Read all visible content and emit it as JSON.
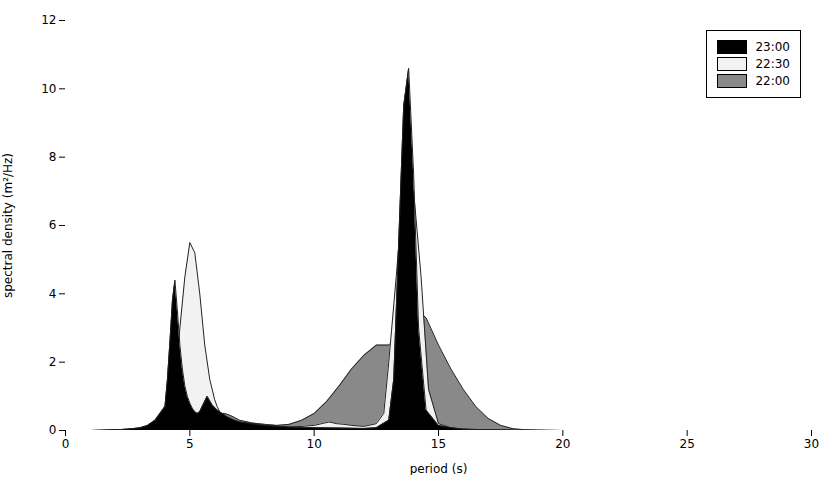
{
  "chart_data": {
    "type": "area",
    "xlabel": "period (s)",
    "ylabel": "spectral density (m²/Hz)",
    "xlim": [
      0,
      30
    ],
    "ylim": [
      0,
      12
    ],
    "xticks": [
      0,
      5,
      10,
      15,
      20,
      25,
      30
    ],
    "yticks": [
      0,
      2,
      4,
      6,
      8,
      10,
      12
    ],
    "grid": false,
    "legend": "upper right",
    "series": [
      {
        "name": "23:00",
        "color": "#000000",
        "x": [
          0.0,
          0.5,
          1.0,
          1.5,
          2.0,
          2.5,
          3.0,
          3.3,
          3.6,
          3.8,
          4.0,
          4.1,
          4.2,
          4.3,
          4.4,
          4.5,
          4.6,
          4.7,
          4.8,
          4.9,
          5.0,
          5.1,
          5.2,
          5.3,
          5.4,
          5.5,
          5.7,
          5.9,
          6.1,
          6.3,
          6.5,
          6.8,
          7.0,
          7.5,
          8.0,
          9.0,
          10.0,
          11.0,
          12.0,
          12.5,
          13.0,
          13.2,
          13.4,
          13.6,
          13.8,
          14.0,
          14.2,
          14.5,
          15.0,
          15.5,
          16.0,
          17.0,
          18.0,
          20.0,
          25.0,
          30.0
        ],
        "values": [
          0.0,
          0.0,
          0.0,
          0.01,
          0.02,
          0.04,
          0.08,
          0.15,
          0.3,
          0.5,
          0.7,
          1.5,
          2.6,
          3.8,
          4.4,
          3.5,
          2.5,
          1.8,
          1.3,
          1.0,
          0.8,
          0.65,
          0.55,
          0.5,
          0.55,
          0.7,
          1.0,
          0.75,
          0.6,
          0.5,
          0.4,
          0.3,
          0.25,
          0.2,
          0.15,
          0.1,
          0.08,
          0.07,
          0.06,
          0.08,
          0.3,
          1.5,
          5.5,
          9.5,
          10.6,
          7.5,
          3.0,
          0.6,
          0.15,
          0.08,
          0.04,
          0.02,
          0.01,
          0.0,
          0.0,
          0.0
        ]
      },
      {
        "name": "22:30",
        "color": "#f2f2f2",
        "x": [
          0.0,
          0.5,
          1.0,
          1.5,
          2.0,
          2.5,
          3.0,
          3.3,
          3.6,
          3.8,
          4.0,
          4.2,
          4.4,
          4.6,
          4.8,
          5.0,
          5.2,
          5.4,
          5.6,
          5.8,
          6.0,
          6.1,
          6.2,
          6.4,
          6.6,
          6.8,
          7.0,
          7.2,
          7.5,
          8.0,
          8.5,
          9.0,
          9.5,
          10.0,
          10.3,
          10.6,
          10.9,
          11.2,
          11.5,
          12.0,
          12.5,
          12.8,
          13.0,
          13.3,
          13.6,
          13.9,
          14.0,
          14.3,
          14.6,
          15.0,
          15.5,
          16.0,
          17.0,
          18.0,
          19.0,
          20.0,
          25.0,
          30.0
        ],
        "values": [
          0.0,
          0.0,
          0.0,
          0.01,
          0.02,
          0.04,
          0.06,
          0.12,
          0.2,
          0.35,
          0.5,
          0.8,
          1.5,
          3.0,
          4.5,
          5.5,
          5.2,
          4.0,
          2.5,
          1.5,
          0.9,
          0.7,
          0.55,
          0.4,
          0.3,
          0.25,
          0.2,
          0.18,
          0.15,
          0.12,
          0.1,
          0.1,
          0.12,
          0.15,
          0.2,
          0.25,
          0.2,
          0.18,
          0.15,
          0.12,
          0.2,
          0.5,
          2.0,
          4.5,
          7.2,
          6.8,
          7.0,
          4.5,
          1.2,
          0.2,
          0.08,
          0.04,
          0.02,
          0.01,
          0.0,
          0.0,
          0.0,
          0.0
        ]
      },
      {
        "name": "22:00",
        "color": "#898989",
        "x": [
          0.0,
          0.5,
          1.0,
          1.5,
          2.0,
          2.5,
          3.0,
          3.3,
          3.6,
          3.8,
          4.0,
          4.2,
          4.4,
          4.6,
          4.8,
          5.0,
          5.2,
          5.4,
          5.6,
          5.8,
          6.0,
          6.2,
          6.4,
          6.6,
          6.8,
          7.0,
          7.5,
          8.0,
          8.5,
          9.0,
          9.5,
          10.0,
          10.5,
          11.0,
          11.5,
          12.0,
          12.5,
          13.0,
          13.5,
          14.0,
          14.5,
          15.0,
          15.5,
          16.0,
          16.5,
          17.0,
          17.5,
          18.0,
          18.5,
          19.0,
          20.0,
          25.0,
          30.0
        ],
        "values": [
          0.0,
          0.0,
          0.0,
          0.0,
          0.01,
          0.02,
          0.05,
          0.1,
          0.18,
          0.25,
          0.32,
          0.4,
          0.48,
          0.45,
          0.38,
          0.3,
          0.22,
          0.18,
          0.22,
          0.32,
          0.45,
          0.5,
          0.5,
          0.45,
          0.38,
          0.3,
          0.22,
          0.18,
          0.15,
          0.18,
          0.3,
          0.5,
          0.85,
          1.3,
          1.8,
          2.2,
          2.5,
          2.5,
          2.8,
          3.6,
          3.3,
          2.5,
          1.8,
          1.2,
          0.7,
          0.35,
          0.15,
          0.05,
          0.02,
          0.01,
          0.0,
          0.0,
          0.0
        ]
      }
    ]
  }
}
